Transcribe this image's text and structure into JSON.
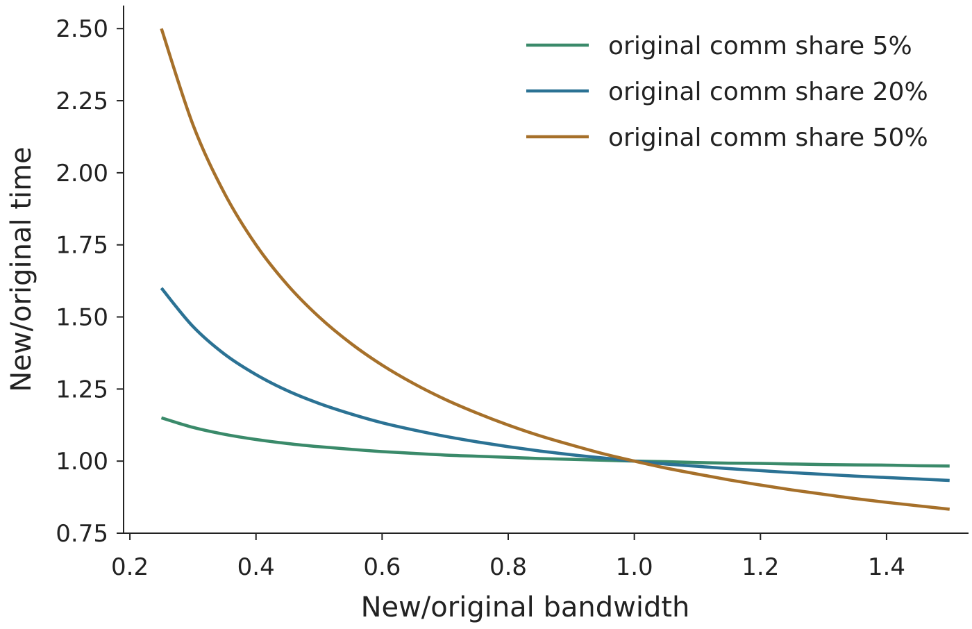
{
  "chart_data": {
    "type": "line",
    "xlabel": "New/original bandwidth",
    "ylabel": "New/original time",
    "xlim": [
      0.19,
      1.53
    ],
    "ylim": [
      0.75,
      2.58
    ],
    "xticks": [
      0.2,
      0.4,
      0.6,
      0.8,
      1.0,
      1.2,
      1.4
    ],
    "xtick_labels": [
      "0.2",
      "0.4",
      "0.6",
      "0.8",
      "1.0",
      "1.2",
      "1.4"
    ],
    "yticks": [
      0.75,
      1.0,
      1.25,
      1.5,
      1.75,
      2.0,
      2.25,
      2.5
    ],
    "ytick_labels": [
      "0.75",
      "1.00",
      "1.25",
      "1.50",
      "1.75",
      "2.00",
      "2.25",
      "2.50"
    ],
    "grid": false,
    "legend_position": "top-right",
    "x": [
      0.25,
      0.3,
      0.35,
      0.4,
      0.45,
      0.5,
      0.55,
      0.6,
      0.65,
      0.7,
      0.75,
      0.8,
      0.85,
      0.9,
      0.95,
      1.0,
      1.05,
      1.1,
      1.15,
      1.2,
      1.25,
      1.3,
      1.35,
      1.4,
      1.45,
      1.5
    ],
    "series": [
      {
        "name": "original comm share 5%",
        "color": "#3a8a6a",
        "values": [
          1.15,
          1.117,
          1.093,
          1.075,
          1.061,
          1.05,
          1.041,
          1.033,
          1.027,
          1.021,
          1.017,
          1.013,
          1.009,
          1.006,
          1.003,
          1.0,
          0.998,
          0.995,
          0.993,
          0.992,
          0.99,
          0.988,
          0.987,
          0.986,
          0.984,
          0.983
        ]
      },
      {
        "name": "original comm share 20%",
        "color": "#2b7294",
        "values": [
          1.6,
          1.467,
          1.371,
          1.3,
          1.244,
          1.2,
          1.164,
          1.133,
          1.108,
          1.086,
          1.067,
          1.05,
          1.035,
          1.022,
          1.011,
          1.0,
          0.99,
          0.982,
          0.974,
          0.967,
          0.96,
          0.954,
          0.948,
          0.943,
          0.938,
          0.933
        ]
      },
      {
        "name": "original comm share 50%",
        "color": "#a6702a",
        "values": [
          2.5,
          2.167,
          1.929,
          1.75,
          1.611,
          1.5,
          1.409,
          1.333,
          1.269,
          1.214,
          1.167,
          1.125,
          1.088,
          1.056,
          1.026,
          1.0,
          0.976,
          0.955,
          0.935,
          0.917,
          0.9,
          0.885,
          0.87,
          0.857,
          0.845,
          0.833
        ]
      }
    ]
  }
}
